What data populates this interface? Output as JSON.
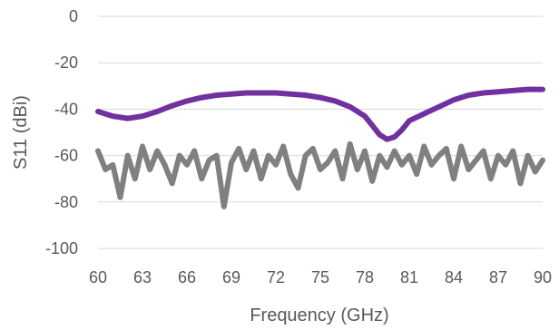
{
  "chart_data": {
    "type": "line",
    "title": "",
    "xlabel": "Frequency (GHz)",
    "ylabel": "S11 (dBi)",
    "xlim": [
      60,
      90
    ],
    "ylim": [
      -100,
      0
    ],
    "x_ticks": [
      60,
      63,
      66,
      69,
      72,
      75,
      78,
      81,
      84,
      87,
      90
    ],
    "y_ticks": [
      0,
      -20,
      -40,
      -60,
      -80,
      -100
    ],
    "grid": true,
    "legend": "none",
    "series": [
      {
        "color": "#7030a0",
        "x": [
          60,
          61,
          62,
          63,
          64,
          65,
          66,
          67,
          68,
          69,
          70,
          71,
          72,
          73,
          74,
          75,
          76,
          77,
          78,
          78.5,
          79,
          79.5,
          80,
          80.5,
          81,
          82,
          83,
          84,
          85,
          86,
          87,
          88,
          89,
          90
        ],
        "y": [
          -41,
          -43,
          -44,
          -43,
          -41,
          -38.5,
          -36.5,
          -35,
          -34,
          -33.5,
          -33,
          -33,
          -33,
          -33.5,
          -34,
          -35,
          -36.5,
          -39,
          -43,
          -47,
          -51,
          -53,
          -52,
          -49,
          -45,
          -42,
          -39,
          -36,
          -34,
          -33,
          -32.5,
          -32,
          -31.5,
          -31.5
        ]
      },
      {
        "color": "#808080",
        "x": [
          60,
          60.5,
          61,
          61.5,
          62,
          62.5,
          63,
          63.5,
          64,
          64.5,
          65,
          65.5,
          66,
          66.5,
          67,
          67.5,
          68,
          68.5,
          69,
          69.5,
          70,
          70.5,
          71,
          71.5,
          72,
          72.5,
          73,
          73.5,
          74,
          74.5,
          75,
          75.5,
          76,
          76.5,
          77,
          77.5,
          78,
          78.5,
          79,
          79.5,
          80,
          80.5,
          81,
          81.5,
          82,
          82.5,
          83,
          83.5,
          84,
          84.5,
          85,
          85.5,
          86,
          86.5,
          87,
          87.5,
          88,
          88.5,
          89,
          89.5,
          90
        ],
        "y": [
          -58,
          -66,
          -64,
          -78,
          -60,
          -70,
          -56,
          -66,
          -58,
          -64,
          -72,
          -60,
          -64,
          -58,
          -70,
          -62,
          -60,
          -82,
          -63,
          -57,
          -66,
          -58,
          -70,
          -60,
          -64,
          -56,
          -68,
          -74,
          -60,
          -57,
          -66,
          -63,
          -58,
          -70,
          -55,
          -66,
          -58,
          -71,
          -60,
          -65,
          -58,
          -64,
          -60,
          -68,
          -56,
          -64,
          -60,
          -57,
          -70,
          -56,
          -66,
          -62,
          -58,
          -70,
          -60,
          -64,
          -58,
          -72,
          -60,
          -67,
          -62
        ]
      }
    ]
  }
}
